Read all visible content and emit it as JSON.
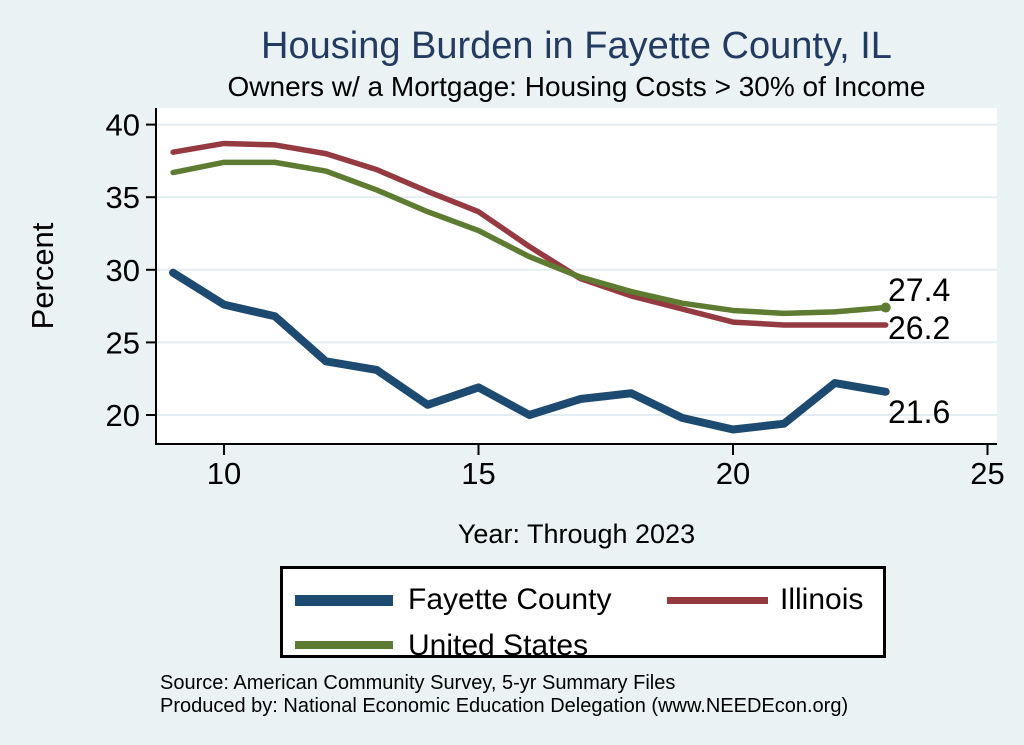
{
  "title": "Housing Burden in Fayette County, IL",
  "subtitle": "Owners w/ a Mortgage: Housing Costs > 30% of Income",
  "source": {
    "line1": "Source: American Community Survey, 5-yr Summary Files",
    "line2": "Produced by: National Economic Education Delegation (www.NEEDEcon.org)"
  },
  "colors": {
    "background": "#eaf2f3",
    "plot_background": "#ffffff",
    "gridline": "#e3edf1",
    "axis": "#000000",
    "title_text": "#233a61",
    "fayette_navy": "#1d4a70",
    "illinois_maroon": "#943a40",
    "us_olive": "#5d7c31"
  },
  "chart_data": {
    "type": "line",
    "title": "Housing Burden in Fayette County, IL",
    "subtitle": "Owners w/ a Mortgage: Housing Costs > 30% of Income",
    "xlabel": "Year: Through 2023",
    "ylabel": "Percent",
    "grid": true,
    "legend_position": "bottom",
    "x_years": [
      2009,
      2010,
      2011,
      2012,
      2013,
      2014,
      2015,
      2016,
      2017,
      2018,
      2019,
      2020,
      2021,
      2022,
      2023
    ],
    "x_tick_years": [
      2010,
      2015,
      2020,
      2025
    ],
    "x_tick_labels": [
      "10",
      "15",
      "20",
      "25"
    ],
    "y_ticks": [
      20,
      25,
      30,
      35,
      40
    ],
    "ylim": [
      18,
      41.1
    ],
    "xlim_years": [
      2008.6,
      2025.2
    ],
    "series": [
      {
        "name": "Fayette County",
        "color": "#1d4a70",
        "line_width": 8,
        "end_label": "21.6",
        "end_dot": false,
        "values": [
          29.8,
          27.6,
          26.8,
          23.7,
          23.1,
          20.7,
          21.9,
          20.0,
          21.1,
          21.5,
          19.8,
          19.0,
          19.4,
          22.2,
          21.6
        ]
      },
      {
        "name": "Illinois",
        "color": "#943a40",
        "line_width": 5.5,
        "end_label": "26.2",
        "end_dot": false,
        "values": [
          38.1,
          38.7,
          38.6,
          38.0,
          36.9,
          35.4,
          34.0,
          31.6,
          29.4,
          28.2,
          27.3,
          26.4,
          26.2,
          26.2,
          26.2
        ]
      },
      {
        "name": "United States",
        "color": "#5d7c31",
        "line_width": 5.5,
        "end_label": "27.4",
        "end_dot": true,
        "values": [
          36.7,
          37.4,
          37.4,
          36.8,
          35.5,
          34.0,
          32.7,
          30.9,
          29.5,
          28.5,
          27.7,
          27.2,
          27.0,
          27.1,
          27.4
        ]
      }
    ]
  }
}
